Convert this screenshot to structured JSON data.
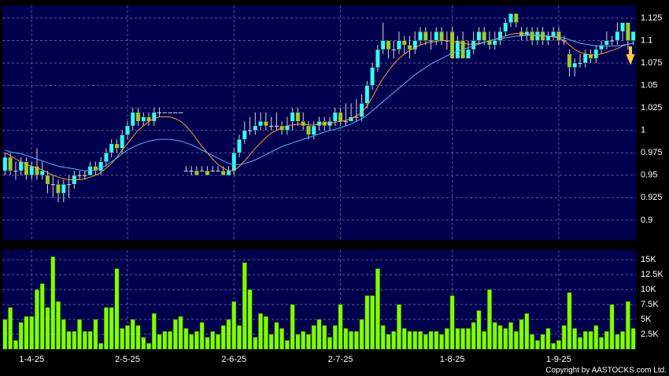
{
  "chart_data": [
    {
      "type": "candlestick",
      "categories": [
        null,
        null,
        null,
        null,
        null,
        "1-4-25",
        null,
        null,
        null,
        null,
        null,
        null,
        null,
        null,
        null,
        null,
        null,
        null,
        null,
        null,
        null,
        null,
        null,
        "2-5-25",
        null,
        null,
        null,
        null,
        null,
        null,
        null,
        null,
        null,
        null,
        null,
        null,
        null,
        null,
        null,
        null,
        null,
        null,
        null,
        "2-6-25",
        null,
        null,
        null,
        null,
        null,
        null,
        null,
        null,
        null,
        null,
        null,
        null,
        null,
        null,
        null,
        null,
        null,
        null,
        null,
        "2-7-25",
        null,
        null,
        null,
        null,
        null,
        null,
        null,
        null,
        null,
        null,
        null,
        null,
        null,
        null,
        null,
        null,
        null,
        null,
        null,
        null,
        "1-8-25",
        null,
        null,
        null,
        null,
        null,
        null,
        null,
        null,
        null,
        null,
        null,
        null,
        null,
        null,
        null,
        null,
        null,
        null,
        null,
        "1-9-25",
        null,
        null,
        null,
        null,
        null,
        null,
        null,
        null,
        null,
        null,
        null,
        null,
        null,
        null
      ],
      "open": [
        0.955,
        0.97,
        0.955,
        0.955,
        0.965,
        0.95,
        0.96,
        0.95,
        0.95,
        0.94,
        0.94,
        0.93,
        0.94,
        0.94,
        0.95,
        0.95,
        0.95,
        0.96,
        0.955,
        0.965,
        0.975,
        0.985,
        0.98,
        0.995,
        1.005,
        1.02,
        1.01,
        1.015,
        1.01,
        1.02,
        1.02,
        1.02,
        1.02,
        1.02,
        0.955,
        0.955,
        0.955,
        0.955,
        0.955,
        0.955,
        0.955,
        0.955,
        0.95,
        0.955,
        0.975,
        0.99,
        1.0,
        1.0,
        1.005,
        1.01,
        1.005,
        1.005,
        1.005,
        1.0,
        1.01,
        1.02,
        1.01,
        1.005,
        0.995,
        1.005,
        1.01,
        1.005,
        1.01,
        1.02,
        1.01,
        1.01,
        1.015,
        1.015,
        1.03,
        1.05,
        1.07,
        1.09,
        1.1,
        1.09,
        1.09,
        1.1,
        1.095,
        1.09,
        1.1,
        1.11,
        1.1,
        1.1,
        1.11,
        1.1,
        1.11,
        1.08,
        1.1,
        1.08,
        1.09,
        1.1,
        1.11,
        1.1,
        1.095,
        1.1,
        1.11,
        1.12,
        1.13,
        1.11,
        1.105,
        1.11,
        1.1,
        1.11,
        1.1,
        1.105,
        1.11,
        1.1,
        1.085,
        1.07,
        1.075,
        1.075,
        1.085,
        1.08,
        1.09,
        1.095,
        1.1,
        1.1,
        1.11,
        1.12,
        1.1
      ],
      "high": [
        0.975,
        0.975,
        0.965,
        0.97,
        0.97,
        0.965,
        0.98,
        0.965,
        0.955,
        0.95,
        0.945,
        0.945,
        0.95,
        0.955,
        0.955,
        0.955,
        0.965,
        0.965,
        0.97,
        0.98,
        0.99,
        0.99,
        1.0,
        1.01,
        1.025,
        1.025,
        1.02,
        1.02,
        1.025,
        1.025,
        1.02,
        1.02,
        1.02,
        1.02,
        0.96,
        0.96,
        0.96,
        0.96,
        0.96,
        0.96,
        0.96,
        0.96,
        0.96,
        0.98,
        0.995,
        1.01,
        1.015,
        1.02,
        1.02,
        1.02,
        1.015,
        1.02,
        1.01,
        1.015,
        1.025,
        1.025,
        1.02,
        1.01,
        1.01,
        1.015,
        1.015,
        1.015,
        1.025,
        1.025,
        1.03,
        1.03,
        1.035,
        1.04,
        1.055,
        1.075,
        1.095,
        1.12,
        1.1,
        1.1,
        1.11,
        1.105,
        1.105,
        1.11,
        1.115,
        1.115,
        1.11,
        1.115,
        1.115,
        1.11,
        1.115,
        1.105,
        1.11,
        1.1,
        1.11,
        1.115,
        1.115,
        1.11,
        1.11,
        1.115,
        1.125,
        1.13,
        1.13,
        1.115,
        1.115,
        1.115,
        1.115,
        1.115,
        1.11,
        1.115,
        1.115,
        1.105,
        1.09,
        1.08,
        1.085,
        1.09,
        1.09,
        1.095,
        1.1,
        1.11,
        1.105,
        1.12,
        1.12,
        1.12,
        1.11
      ],
      "low": [
        0.95,
        0.95,
        0.945,
        0.95,
        0.945,
        0.945,
        0.945,
        0.945,
        0.93,
        0.925,
        0.92,
        0.92,
        0.925,
        0.935,
        0.945,
        0.945,
        0.95,
        0.95,
        0.95,
        0.96,
        0.97,
        0.975,
        0.975,
        0.99,
        1.0,
        1.005,
        1.005,
        1.005,
        1.005,
        1.015,
        1.02,
        1.02,
        1.02,
        1.02,
        0.955,
        0.95,
        0.95,
        0.955,
        0.95,
        0.955,
        0.955,
        0.95,
        0.95,
        0.95,
        0.97,
        0.985,
        0.995,
        0.995,
        1.0,
        1.0,
        1.0,
        1.0,
        0.995,
        0.995,
        1.0,
        1.005,
        1.0,
        0.99,
        0.99,
        1.0,
        1.0,
        1.0,
        1.005,
        1.005,
        1.005,
        1.01,
        1.01,
        1.01,
        1.025,
        1.045,
        1.065,
        1.085,
        1.08,
        1.08,
        1.085,
        1.085,
        1.08,
        1.085,
        1.095,
        1.095,
        1.09,
        1.095,
        1.095,
        1.09,
        1.08,
        1.08,
        1.08,
        1.08,
        1.085,
        1.095,
        1.095,
        1.09,
        1.09,
        1.095,
        1.105,
        1.115,
        1.115,
        1.1,
        1.1,
        1.095,
        1.095,
        1.095,
        1.095,
        1.1,
        1.095,
        1.095,
        1.06,
        1.06,
        1.07,
        1.07,
        1.075,
        1.075,
        1.085,
        1.09,
        1.095,
        1.095,
        1.1,
        1.09,
        1.095
      ],
      "close": [
        0.97,
        0.955,
        0.955,
        0.965,
        0.95,
        0.96,
        0.95,
        0.955,
        0.94,
        0.94,
        0.93,
        0.94,
        0.94,
        0.95,
        0.95,
        0.95,
        0.96,
        0.955,
        0.965,
        0.975,
        0.985,
        0.98,
        0.995,
        1.005,
        1.02,
        1.01,
        1.015,
        1.01,
        1.02,
        1.02,
        1.02,
        1.02,
        1.02,
        1.02,
        0.955,
        0.955,
        0.95,
        0.955,
        0.95,
        0.955,
        0.955,
        0.95,
        0.955,
        0.975,
        0.99,
        1.0,
        1.0,
        1.005,
        1.01,
        1.005,
        1.005,
        1.005,
        1.0,
        1.005,
        1.02,
        1.01,
        1.005,
        0.995,
        1.005,
        1.01,
        1.005,
        1.01,
        1.02,
        1.01,
        1.01,
        1.015,
        1.015,
        1.03,
        1.05,
        1.07,
        1.09,
        1.1,
        1.09,
        1.09,
        1.1,
        1.095,
        1.09,
        1.1,
        1.11,
        1.1,
        1.1,
        1.11,
        1.1,
        1.1,
        1.08,
        1.1,
        1.08,
        1.09,
        1.1,
        1.11,
        1.1,
        1.095,
        1.1,
        1.11,
        1.12,
        1.13,
        1.12,
        1.105,
        1.11,
        1.1,
        1.11,
        1.1,
        1.105,
        1.11,
        1.1,
        1.1,
        1.07,
        1.075,
        1.075,
        1.085,
        1.08,
        1.09,
        1.095,
        1.1,
        1.1,
        1.11,
        1.12,
        1.1,
        1.11
      ],
      "up_color": "#33ffff",
      "down_color": "#9acd32",
      "flat_color": "#d8d8d8",
      "series": [
        {
          "color": "#ff9933",
          "values": [
            0.975,
            0.972,
            0.968,
            0.965,
            0.962,
            0.96,
            0.958,
            0.956,
            0.953,
            0.95,
            0.948,
            0.946,
            0.945,
            0.945,
            0.945,
            0.946,
            0.948,
            0.95,
            0.953,
            0.958,
            0.963,
            0.97,
            0.978,
            0.985,
            0.993,
            1.0,
            1.005,
            1.01,
            1.013,
            1.015,
            1.015,
            1.015,
            1.013,
            1.01,
            1.005,
            0.998,
            0.99,
            0.982,
            0.975,
            0.968,
            0.962,
            0.958,
            0.955,
            0.955,
            0.96,
            0.966,
            0.973,
            0.98,
            0.986,
            0.992,
            0.997,
            1.0,
            1.003,
            1.005,
            1.006,
            1.007,
            1.007,
            1.006,
            1.006,
            1.007,
            1.008,
            1.008,
            1.009,
            1.01,
            1.011,
            1.013,
            1.016,
            1.02,
            1.027,
            1.037,
            1.048,
            1.058,
            1.066,
            1.074,
            1.08,
            1.085,
            1.089,
            1.092,
            1.095,
            1.097,
            1.098,
            1.099,
            1.1,
            1.1,
            1.099,
            1.098,
            1.097,
            1.096,
            1.096,
            1.097,
            1.098,
            1.1,
            1.101,
            1.103,
            1.105,
            1.107,
            1.108,
            1.108,
            1.107,
            1.106,
            1.105,
            1.105,
            1.105,
            1.104,
            1.103,
            1.1,
            1.095,
            1.09,
            1.087,
            1.085,
            1.084,
            1.084,
            1.085,
            1.087,
            1.089,
            1.091,
            1.094,
            1.096,
            1.097
          ]
        },
        {
          "color": "#4db8ff",
          "values": [
            0.978,
            0.976,
            0.975,
            0.974,
            0.972,
            0.97,
            0.968,
            0.966,
            0.964,
            0.962,
            0.96,
            0.959,
            0.958,
            0.957,
            0.956,
            0.955,
            0.955,
            0.956,
            0.958,
            0.961,
            0.965,
            0.969,
            0.974,
            0.978,
            0.981,
            0.984,
            0.986,
            0.988,
            0.989,
            0.99,
            0.99,
            0.99,
            0.989,
            0.988,
            0.986,
            0.984,
            0.981,
            0.978,
            0.975,
            0.972,
            0.969,
            0.966,
            0.963,
            0.962,
            0.962,
            0.963,
            0.965,
            0.967,
            0.97,
            0.973,
            0.976,
            0.979,
            0.982,
            0.984,
            0.986,
            0.988,
            0.99,
            0.992,
            0.994,
            0.996,
            0.998,
            1.0,
            1.001,
            1.003,
            1.005,
            1.007,
            1.01,
            1.013,
            1.017,
            1.022,
            1.027,
            1.032,
            1.037,
            1.042,
            1.047,
            1.052,
            1.057,
            1.062,
            1.066,
            1.07,
            1.074,
            1.077,
            1.08,
            1.083,
            1.086,
            1.088,
            1.09,
            1.092,
            1.094,
            1.096,
            1.098,
            1.1,
            1.101,
            1.102,
            1.103,
            1.104,
            1.105,
            1.105,
            1.106,
            1.106,
            1.106,
            1.106,
            1.105,
            1.105,
            1.104,
            1.103,
            1.101,
            1.099,
            1.097,
            1.096,
            1.095,
            1.094,
            1.094,
            1.094,
            1.094,
            1.094,
            1.095,
            1.096,
            1.097
          ]
        }
      ],
      "ylim": [
        0.878,
        1.139
      ],
      "yticks": [
        1.125,
        1.1,
        1.075,
        1.05,
        1.025,
        1,
        0.975,
        0.95,
        0.925,
        0.9
      ],
      "grid": true
    },
    {
      "type": "bar",
      "values": [
        5000,
        7000,
        1500,
        4500,
        5500,
        5500,
        10000,
        11000,
        7000,
        15500,
        8000,
        5000,
        3000,
        3000,
        5000,
        3000,
        3000,
        5000,
        1000,
        7000,
        7000,
        13500,
        3500,
        4000,
        5000,
        4000,
        2000,
        1000,
        6000,
        2500,
        3000,
        3000,
        5000,
        5500,
        3500,
        2500,
        3000,
        4500,
        2000,
        3000,
        2500,
        4000,
        5000,
        8000,
        4000,
        14500,
        10000,
        2000,
        6000,
        5500,
        2500,
        4500,
        3500,
        1500,
        7500,
        2500,
        3000,
        2500,
        4000,
        5000,
        4000,
        2000,
        4000,
        7500,
        3500,
        3000,
        3000,
        5000,
        9000,
        9000,
        13500,
        4000,
        2500,
        3000,
        7500,
        3500,
        3000,
        3000,
        3000,
        2500,
        3000,
        3000,
        2500,
        3500,
        9000,
        3500,
        3500,
        3500,
        4500,
        6500,
        3000,
        10000,
        4500,
        4000,
        3500,
        4500,
        3000,
        5000,
        6000,
        2500,
        1500,
        2500,
        3500,
        1000,
        1500,
        4000,
        9500,
        3500,
        2000,
        3000,
        3000,
        4000,
        2000,
        3000,
        7500,
        2500,
        3000,
        8000,
        3500
      ],
      "color": "#80ff00",
      "ylim": [
        0,
        16600
      ],
      "yticks": [
        {
          "value": 15000,
          "label": "15K"
        },
        {
          "value": 12500,
          "label": "12.5K"
        },
        {
          "value": 10000,
          "label": "10K"
        },
        {
          "value": 7500,
          "label": "7.5K"
        },
        {
          "value": 5000,
          "label": "5K"
        },
        {
          "value": 2500,
          "label": "2.5K"
        }
      ],
      "grid": true,
      "source": "Copyright by AASTOCKS.com Ltd."
    }
  ]
}
